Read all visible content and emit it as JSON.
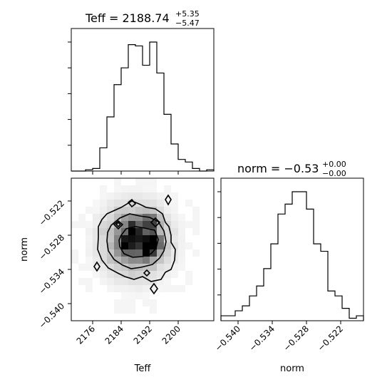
{
  "chart_data": [
    {
      "type": "histogram",
      "panel": "Teff marginal",
      "title": {
        "main": "Teff = 2188.74",
        "plus": "+5.35",
        "minus": "−5.47"
      },
      "xlim": [
        2170,
        2210
      ],
      "bins": {
        "start": 2170,
        "width": 2,
        "counts": [
          0,
          0,
          1,
          2,
          18,
          42,
          67,
          80,
          98,
          97,
          82,
          100,
          76,
          44,
          21,
          9,
          7,
          2,
          0,
          1
        ]
      },
      "y_ticks_labeled": false,
      "style": "step"
    },
    {
      "type": "histogram",
      "panel": "norm marginal",
      "title": {
        "main": "norm = −0.53",
        "plus": "+0.00",
        "minus": "−0.00"
      },
      "xlim": [
        -0.543,
        -0.518
      ],
      "bins": {
        "start": -0.543,
        "width": 0.00125,
        "counts": [
          2,
          2,
          4,
          6,
          10,
          14,
          21,
          31,
          43,
          47,
          52,
          52,
          45,
          31,
          28,
          12,
          10,
          5,
          1,
          2
        ]
      },
      "x_ticks": [
        "−0.540",
        "−0.534",
        "−0.528",
        "−0.522"
      ],
      "x_tick_values": [
        -0.54,
        -0.534,
        -0.528,
        -0.522
      ],
      "xlabel": "norm",
      "y_ticks_labeled": false,
      "style": "step"
    },
    {
      "type": "heatmap",
      "panel": "Teff vs norm 2D density",
      "xlim": [
        2170,
        2210
      ],
      "ylim": [
        -0.543,
        -0.518
      ],
      "x_ticks": [
        "2176",
        "2184",
        "2192",
        "2200"
      ],
      "x_tick_values": [
        2176,
        2184,
        2192,
        2200
      ],
      "y_ticks": [
        "−0.522",
        "−0.528",
        "−0.534",
        "−0.540"
      ],
      "y_tick_values": [
        -0.522,
        -0.528,
        -0.534,
        -0.54
      ],
      "xlabel": "Teff",
      "ylabel": "norm",
      "colormap": "greys",
      "contour_color": "#000000"
    }
  ]
}
